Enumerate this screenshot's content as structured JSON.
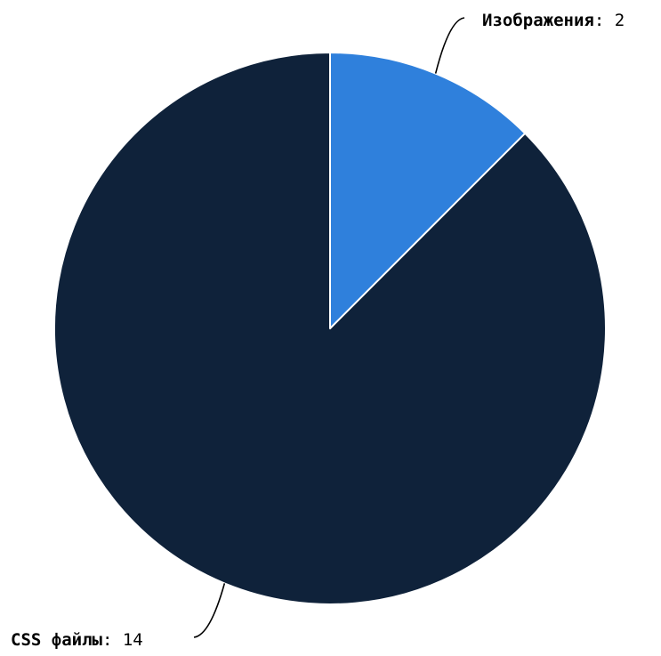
{
  "chart_data": {
    "type": "pie",
    "slices": [
      {
        "name": "Изображения",
        "value": 2,
        "color": "#2f80dc"
      },
      {
        "name": "CSS файлы",
        "value": 14,
        "color": "#0f223a"
      }
    ],
    "label_separator": ":",
    "legend": "none",
    "start_angle": "12 o'clock",
    "direction": "clockwise"
  }
}
